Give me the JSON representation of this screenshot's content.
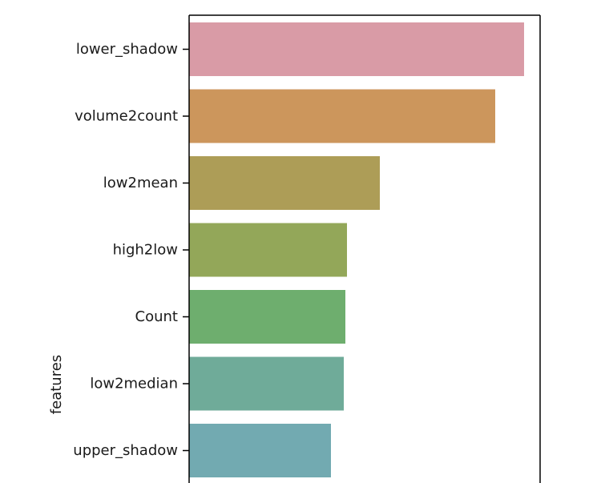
{
  "chart_data": {
    "type": "bar",
    "orientation": "horizontal",
    "ylabel": "features",
    "xlabel": "",
    "categories": [
      "lower_shadow",
      "volume2count",
      "low2mean",
      "high2low",
      "Count",
      "low2median",
      "upper_shadow"
    ],
    "values": [
      418,
      382,
      238,
      197,
      195,
      193,
      177
    ],
    "xlim": [
      0,
      438
    ],
    "colors": [
      "#d99ba6",
      "#cc965c",
      "#ad9d57",
      "#93a759",
      "#6eae6e",
      "#6fab99",
      "#72aab1"
    ],
    "grid": false,
    "legend": "none"
  }
}
